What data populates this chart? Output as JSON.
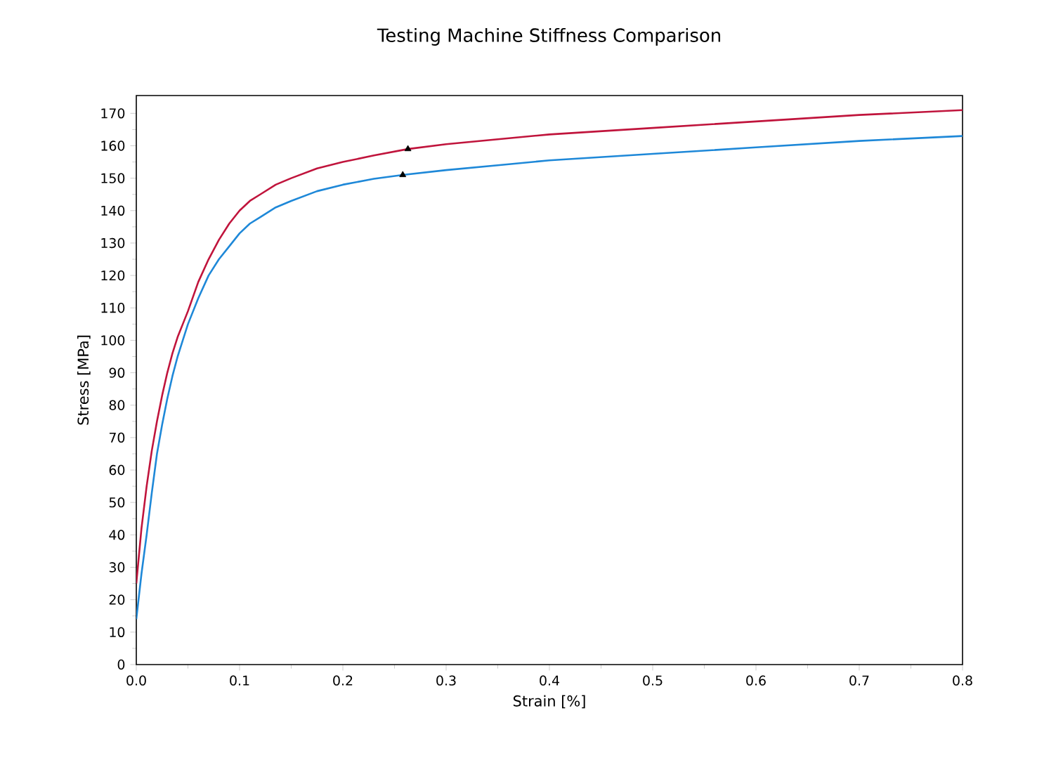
{
  "chart_data": {
    "type": "line",
    "title": "Testing Machine Stiffness Comparison",
    "xlabel": "Strain  [%]",
    "ylabel": "Stress  [MPa]",
    "xlim": [
      0,
      0.8
    ],
    "ylim": [
      0,
      175.5
    ],
    "xticks": [
      {
        "value": 0,
        "label": "0.0"
      },
      0.1,
      0.2,
      0.3,
      0.4,
      0.5,
      0.6,
      0.7,
      0.8
    ],
    "yticks": [
      0,
      10,
      20,
      30,
      40,
      50,
      60,
      70,
      80,
      90,
      100,
      110,
      120,
      130,
      140,
      150,
      160,
      170
    ],
    "grid": false,
    "marker": "none",
    "line_style": "solid",
    "series": [
      {
        "color": "#c0143c",
        "x": [
          0,
          0.005,
          0.01,
          0.015,
          0.02,
          0.025,
          0.03,
          0.035,
          0.04,
          0.045,
          0.05,
          0.06,
          0.07,
          0.08,
          0.09,
          0.1,
          0.11,
          0.12,
          0.135,
          0.15,
          0.175,
          0.2,
          0.23,
          0.263,
          0.3,
          0.35,
          0.4,
          0.5,
          0.6,
          0.7,
          0.8
        ],
        "values": [
          25,
          42,
          55,
          66,
          75,
          83,
          90,
          96,
          101,
          105,
          109,
          118,
          125,
          131,
          136,
          140,
          143,
          145,
          148,
          150,
          153,
          155,
          157,
          159,
          160.5,
          162,
          163.5,
          165.5,
          167.5,
          169.5,
          171
        ]
      },
      {
        "color": "#1e88d8",
        "x": [
          0,
          0.005,
          0.01,
          0.015,
          0.02,
          0.025,
          0.03,
          0.035,
          0.04,
          0.045,
          0.05,
          0.06,
          0.07,
          0.08,
          0.09,
          0.1,
          0.11,
          0.12,
          0.135,
          0.15,
          0.175,
          0.2,
          0.23,
          0.258,
          0.3,
          0.35,
          0.4,
          0.5,
          0.6,
          0.7,
          0.8
        ],
        "values": [
          14,
          28,
          40,
          53,
          65,
          74,
          82,
          89,
          95,
          100,
          105,
          113,
          120,
          125,
          129,
          133,
          136,
          138,
          141,
          143,
          146,
          148,
          149.8,
          151,
          152.5,
          154,
          155.5,
          157.5,
          159.5,
          161.5,
          163
        ]
      },
      {
        "type": "scatter",
        "color": "#000000",
        "marker": "triangle",
        "x": [
          0.263,
          0.258
        ],
        "values": [
          159,
          151
        ]
      }
    ]
  }
}
